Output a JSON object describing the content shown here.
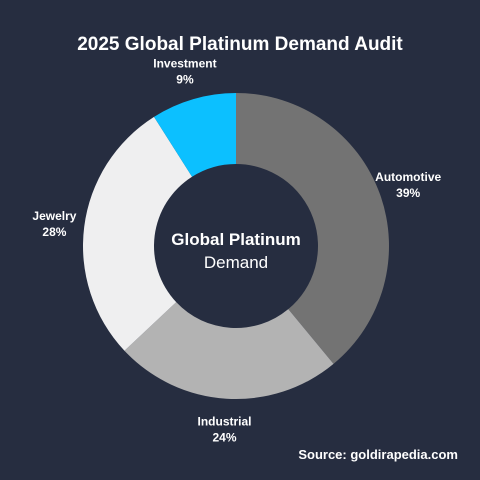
{
  "chart_data": {
    "type": "pie",
    "variant": "donut",
    "title": "2025 Global Platinum Demand Audit",
    "center_label_line1": "Global Platinum",
    "center_label_line2": "Demand",
    "source": "Source: goldirapedia.com",
    "slices": [
      {
        "name": "Automotive",
        "value": 39,
        "value_label": "39%",
        "color": "#737373"
      },
      {
        "name": "Industrial",
        "value": 24,
        "value_label": "24%",
        "color": "#b3b3b3"
      },
      {
        "name": "Jewelry",
        "value": 28,
        "value_label": "28%",
        "color": "#efeff0"
      },
      {
        "name": "Investment",
        "value": 9,
        "value_label": "9%",
        "color": "#0cc0ff"
      }
    ],
    "start_angle": "12 o'clock",
    "direction": "clockwise",
    "legend": "none (labels on outer edge)"
  }
}
